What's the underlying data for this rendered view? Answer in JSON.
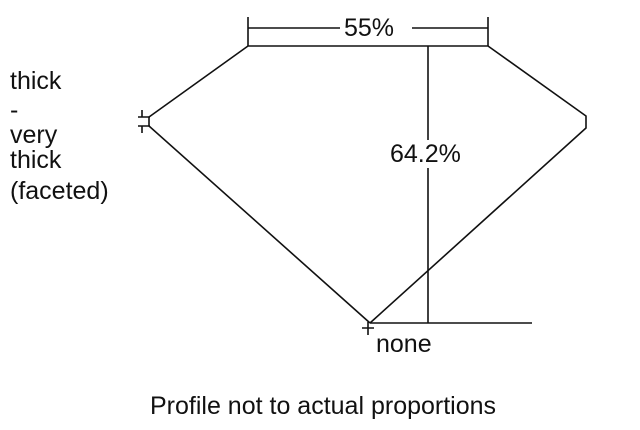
{
  "girdle_label": [
    "thick",
    "-",
    "very",
    "thick",
    "(faceted)"
  ],
  "table_label": "55%",
  "depth_label": "64.2%",
  "culet_label": "none",
  "caption": "Profile not to actual proportions"
}
